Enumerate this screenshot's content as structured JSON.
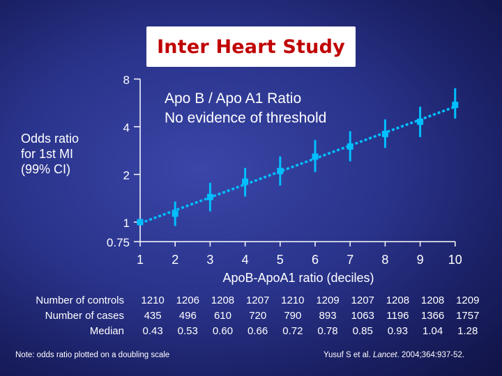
{
  "title": "Inter Heart Study",
  "annotation": {
    "line1": "Apo B / Apo A1 Ratio",
    "line2": "No evidence of threshold"
  },
  "y_label_lines": [
    "Odds ratio",
    "for 1st MI",
    "(99% CI)"
  ],
  "x_label": "ApoB-ApoA1 ratio (deciles)",
  "colors": {
    "accent": "#00bfff",
    "title": "#c00000",
    "background": "#29338a"
  },
  "chart_data": {
    "type": "scatter",
    "x": [
      1,
      2,
      3,
      4,
      5,
      6,
      7,
      8,
      9,
      10
    ],
    "y": [
      1,
      1.13,
      1.44,
      1.8,
      2.1,
      2.59,
      3.0,
      3.6,
      4.3,
      5.5
    ],
    "ci_low": [
      1,
      0.95,
      1.17,
      1.45,
      1.7,
      2.07,
      2.42,
      2.94,
      3.44,
      4.5
    ],
    "ci_high": [
      1,
      1.35,
      1.77,
      2.2,
      2.6,
      3.3,
      3.75,
      4.45,
      5.35,
      7.0
    ],
    "trend_line": true,
    "x_ticks": [
      "1",
      "2",
      "3",
      "4",
      "5",
      "6",
      "7",
      "8",
      "9",
      "10"
    ],
    "y_ticks": [
      {
        "value": 0.75,
        "label": "0.75"
      },
      {
        "value": 1,
        "label": "1"
      },
      {
        "value": 2,
        "label": "2"
      },
      {
        "value": 4,
        "label": "4"
      },
      {
        "value": 8,
        "label": "8"
      }
    ],
    "y_scale": "log2",
    "xlim": [
      1,
      10
    ],
    "ylim": [
      0.75,
      8
    ],
    "grid": false
  },
  "table": {
    "rows": [
      {
        "label": "Number of controls",
        "values": [
          "1210",
          "1206",
          "1208",
          "1207",
          "1210",
          "1209",
          "1207",
          "1208",
          "1208",
          "1209"
        ]
      },
      {
        "label": "Number of cases",
        "values": [
          "435",
          "496",
          "610",
          "720",
          "790",
          "893",
          "1063",
          "1196",
          "1366",
          "1757"
        ]
      },
      {
        "label": "Median",
        "values": [
          "0.43",
          "0.53",
          "0.60",
          "0.66",
          "0.72",
          "0.78",
          "0.85",
          "0.93",
          "1.04",
          "1.28"
        ]
      }
    ]
  },
  "footer": {
    "note": "Note: odds ratio plotted on a doubling scale",
    "citation_prefix": "Yusuf S et al.",
    "citation_journal": "Lancet",
    "citation_suffix": "2004;364:937-52."
  }
}
